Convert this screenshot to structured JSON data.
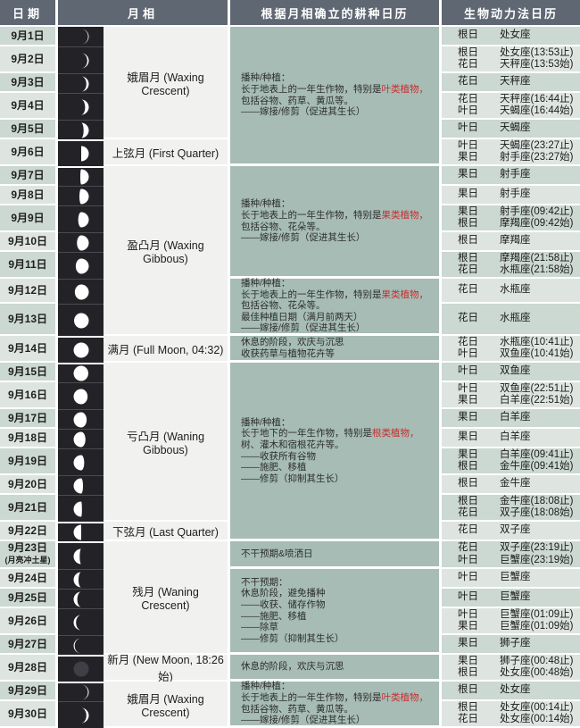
{
  "header": {
    "col_date": "日期",
    "col_moon": "月相",
    "col_planting": "根据月相确立的耕种日历",
    "col_biodynamic": "生物动力法日历"
  },
  "colors": {
    "header_bg": "#5f6773",
    "date_row_odd": "#ccd8d2",
    "date_row_even": "#dee5e1",
    "moon_strip_bg": "#232327",
    "moon_label_bg": "#f1f2f0",
    "planting_bg": "#a6bcb5",
    "highlight_red": "#c62f2f",
    "new_moon_disc": "#3f3f46"
  },
  "rows": [
    {
      "date": "9月1日",
      "moon": {
        "f": 0.05,
        "waxing": true
      },
      "bio": [
        [
          "根日",
          "处女座"
        ]
      ]
    },
    {
      "date": "9月2日",
      "moon": {
        "f": 0.1,
        "waxing": true
      },
      "bio": [
        [
          "根日",
          "处女座(13:53止)"
        ],
        [
          "花日",
          "天秤座(13:53始)"
        ]
      ]
    },
    {
      "date": "9月3日",
      "moon": {
        "f": 0.16,
        "waxing": true
      },
      "bio": [
        [
          "花日",
          "天秤座"
        ]
      ]
    },
    {
      "date": "9月4日",
      "moon": {
        "f": 0.24,
        "waxing": true
      },
      "bio": [
        [
          "花日",
          "天秤座(16:44止)"
        ],
        [
          "叶日",
          "天蝎座(16:44始)"
        ]
      ]
    },
    {
      "date": "9月5日",
      "moon": {
        "f": 0.34,
        "waxing": true
      },
      "bio": [
        [
          "叶日",
          "天蝎座"
        ]
      ]
    },
    {
      "date": "9月6日",
      "moon": {
        "f": 0.5,
        "waxing": true
      },
      "bio": [
        [
          "叶日",
          "天蝎座(23:27止)"
        ],
        [
          "果日",
          "射手座(23:27始)"
        ]
      ]
    },
    {
      "date": "9月7日",
      "moon": {
        "f": 0.56,
        "waxing": true
      },
      "bio": [
        [
          "果日",
          "射手座"
        ]
      ]
    },
    {
      "date": "9月8日",
      "moon": {
        "f": 0.62,
        "waxing": true
      },
      "bio": [
        [
          "果日",
          "射手座"
        ]
      ]
    },
    {
      "date": "9月9日",
      "moon": {
        "f": 0.7,
        "waxing": true
      },
      "bio": [
        [
          "果日",
          "射手座(09:42止)"
        ],
        [
          "根日",
          "摩羯座(09:42始)"
        ]
      ]
    },
    {
      "date": "9月10日",
      "moon": {
        "f": 0.78,
        "waxing": true
      },
      "bio": [
        [
          "根日",
          "摩羯座"
        ]
      ]
    },
    {
      "date": "9月11日",
      "moon": {
        "f": 0.86,
        "waxing": true
      },
      "bio": [
        [
          "根日",
          "摩羯座(21:58止)"
        ],
        [
          "花日",
          "水瓶座(21:58始)"
        ]
      ]
    },
    {
      "date": "9月12日",
      "moon": {
        "f": 0.92,
        "waxing": true
      },
      "bio": [
        [
          "花日",
          "水瓶座"
        ]
      ]
    },
    {
      "date": "9月13日",
      "moon": {
        "f": 0.97,
        "waxing": true
      },
      "bio": [
        [
          "花日",
          "水瓶座"
        ]
      ]
    },
    {
      "date": "9月14日",
      "moon": {
        "f": 1.0,
        "waxing": true
      },
      "bio": [
        [
          "花日",
          "水瓶座(10:41止)"
        ],
        [
          "叶日",
          "双鱼座(10:41始)"
        ]
      ]
    },
    {
      "date": "9月15日",
      "moon": {
        "f": 0.97,
        "waxing": false
      },
      "bio": [
        [
          "叶日",
          "双鱼座"
        ]
      ]
    },
    {
      "date": "9月16日",
      "moon": {
        "f": 0.92,
        "waxing": false
      },
      "bio": [
        [
          "叶日",
          "双鱼座(22:51止)"
        ],
        [
          "果日",
          "白羊座(22:51始)"
        ]
      ]
    },
    {
      "date": "9月17日",
      "moon": {
        "f": 0.86,
        "waxing": false
      },
      "bio": [
        [
          "果日",
          "白羊座"
        ]
      ]
    },
    {
      "date": "9月18日",
      "moon": {
        "f": 0.78,
        "waxing": false
      },
      "bio": [
        [
          "果日",
          "白羊座"
        ]
      ]
    },
    {
      "date": "9月19日",
      "moon": {
        "f": 0.7,
        "waxing": false
      },
      "bio": [
        [
          "果日",
          "白羊座(09:41止)"
        ],
        [
          "根日",
          "金牛座(09:41始)"
        ]
      ]
    },
    {
      "date": "9月20日",
      "moon": {
        "f": 0.62,
        "waxing": false
      },
      "bio": [
        [
          "根日",
          "金牛座"
        ]
      ]
    },
    {
      "date": "9月21日",
      "moon": {
        "f": 0.55,
        "waxing": false
      },
      "bio": [
        [
          "根日",
          "金牛座(18:08止)"
        ],
        [
          "花日",
          "双子座(18:08始)"
        ]
      ]
    },
    {
      "date": "9月22日",
      "moon": {
        "f": 0.5,
        "waxing": false
      },
      "bio": [
        [
          "花日",
          "双子座"
        ]
      ]
    },
    {
      "date": "9月23日",
      "date_note": "(月亮冲土星)",
      "moon": {
        "f": 0.4,
        "waxing": false
      },
      "bio": [
        [
          "花日",
          "双子座(23:19止)"
        ],
        [
          "叶日",
          "巨蟹座(23:19始)"
        ]
      ]
    },
    {
      "date": "9月24日",
      "moon": {
        "f": 0.32,
        "waxing": false
      },
      "bio": [
        [
          "叶日",
          "巨蟹座"
        ]
      ]
    },
    {
      "date": "9月25日",
      "moon": {
        "f": 0.24,
        "waxing": false
      },
      "bio": [
        [
          "叶日",
          "巨蟹座"
        ]
      ]
    },
    {
      "date": "9月26日",
      "moon": {
        "f": 0.16,
        "waxing": false
      },
      "bio": [
        [
          "叶日",
          "巨蟹座(01:09止)"
        ],
        [
          "果日",
          "巨蟹座(01:09始)"
        ]
      ]
    },
    {
      "date": "9月27日",
      "moon": {
        "f": 0.07,
        "waxing": false
      },
      "bio": [
        [
          "果日",
          "狮子座"
        ]
      ]
    },
    {
      "date": "9月28日",
      "moon": {
        "f": 0.0,
        "waxing": false
      },
      "bio": [
        [
          "果日",
          "狮子座(00:48止)"
        ],
        [
          "根日",
          "处女座(00:48始)"
        ]
      ]
    },
    {
      "date": "9月29日",
      "moon": {
        "f": 0.06,
        "waxing": true
      },
      "bio": [
        [
          "根日",
          "处女座"
        ]
      ]
    },
    {
      "date": "9月30日",
      "moon": {
        "f": 0.16,
        "waxing": true
      },
      "bio": [
        [
          "根日",
          "处女座(00:14止)"
        ],
        [
          "花日",
          "处女座(00:14始)"
        ]
      ]
    }
  ],
  "moon_groups": [
    {
      "start": 1,
      "end": 5,
      "label": "娥眉月 (Waxing Crescent)"
    },
    {
      "start": 6,
      "end": 6,
      "label": "上弦月 (First Quarter)"
    },
    {
      "start": 7,
      "end": 13,
      "label": "盈凸月 (Waxing Gibbous)"
    },
    {
      "start": 14,
      "end": 14,
      "label": "满月 (Full Moon, 04:32)"
    },
    {
      "start": 15,
      "end": 21,
      "label": "亏凸月 (Waning Gibbous)"
    },
    {
      "start": 22,
      "end": 22,
      "label": "下弦月 (Last Quarter)"
    },
    {
      "start": 23,
      "end": 27,
      "label": "残月 (Waning Crescent)"
    },
    {
      "start": 28,
      "end": 28,
      "label": "新月 (New Moon, 18:26始)"
    },
    {
      "start": 29,
      "end": 30,
      "label": "娥眉月 (Waxing Crescent)"
    }
  ],
  "planting_sections": [
    {
      "start": 1,
      "end": 6,
      "lines": [
        [
          {
            "t": "播种/种植："
          }
        ],
        [
          {
            "t": "长于地表上的一年生作物，特别是"
          },
          {
            "t": "叶类植物，",
            "red": true
          }
        ],
        [
          {
            "t": "包括谷物、药草、黄瓜等。"
          }
        ],
        [
          {
            "t": "——嫁接/修剪（促进其生长）"
          }
        ]
      ]
    },
    {
      "start": 7,
      "end": 11,
      "lines": [
        [
          {
            "t": "播种/种植："
          }
        ],
        [
          {
            "t": "长于地表上的一年生作物，特别是"
          },
          {
            "t": "果类植物，",
            "red": true
          }
        ],
        [
          {
            "t": "包括谷物、花朵等。"
          }
        ],
        [
          {
            "t": "——嫁接/修剪（促进其生长）"
          }
        ]
      ]
    },
    {
      "start": 12,
      "end": 13,
      "lines": [
        [
          {
            "t": "播种/种植："
          }
        ],
        [
          {
            "t": "长于地表上的一年生作物，特别是"
          },
          {
            "t": "果类植物，",
            "red": true
          }
        ],
        [
          {
            "t": "包括谷物、花朵等。"
          }
        ],
        [
          {
            "t": "最佳种植日期（满月前两天）"
          }
        ],
        [
          {
            "t": "——嫁接/修剪（促进其生长）"
          }
        ]
      ]
    },
    {
      "start": 14,
      "end": 14,
      "lines": [
        [
          {
            "t": "休息的阶段，欢庆与沉思"
          }
        ],
        [
          {
            "t": "收获药草与植物花卉等"
          }
        ]
      ]
    },
    {
      "start": 15,
      "end": 22,
      "lines": [
        [
          {
            "t": "播种/种植："
          }
        ],
        [
          {
            "t": "长于地下的一年生作物，特别是"
          },
          {
            "t": "根类植物，",
            "red": true
          }
        ],
        [
          {
            "t": "树、灌木和宿根花卉等。"
          }
        ],
        [
          {
            "t": "——收获所有谷物"
          }
        ],
        [
          {
            "t": "——施肥、移植"
          }
        ],
        [
          {
            "t": "——修剪（抑制其生长）"
          }
        ]
      ]
    },
    {
      "start": 23,
      "end": 23,
      "lines": [
        [
          {
            "t": "不干预期&喷洒日"
          }
        ]
      ]
    },
    {
      "start": 24,
      "end": 27,
      "lines": [
        [
          {
            "t": "不干预期："
          }
        ],
        [
          {
            "t": "休息阶段，避免播种"
          }
        ],
        [
          {
            "t": "——收获、储存作物"
          }
        ],
        [
          {
            "t": "——施肥、移植"
          }
        ],
        [
          {
            "t": "——除草"
          }
        ],
        [
          {
            "t": "——修剪（抑制其生长）"
          }
        ]
      ]
    },
    {
      "start": 28,
      "end": 28,
      "lines": [
        [
          {
            "t": "休息的阶段，欢庆与沉思"
          }
        ]
      ]
    },
    {
      "start": 29,
      "end": 30,
      "lines": [
        [
          {
            "t": "播种/种植："
          }
        ],
        [
          {
            "t": "长于地表上的一年生作物，特别是"
          },
          {
            "t": "叶类植物，",
            "red": true
          }
        ],
        [
          {
            "t": "包括谷物、药草、黄瓜等。"
          }
        ],
        [
          {
            "t": "——嫁接/修剪（促进其生长）"
          }
        ]
      ]
    }
  ]
}
